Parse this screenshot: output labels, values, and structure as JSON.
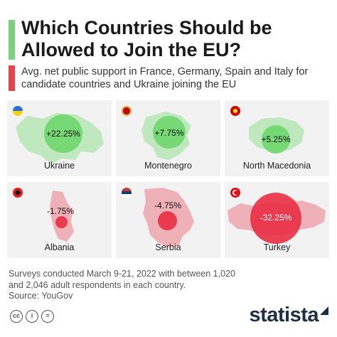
{
  "title": "Which Countries Should be Allowed to Join the EU?",
  "subtitle": "Avg. net public support in France, Germany, Spain and Italy for candidate countries and Ukraine joining the EU",
  "footnote_line1": "Surveys conducted March 9-21, 2022 with between 1,020",
  "footnote_line2": "and 2,046 adult respondents in each country.",
  "source": "Source: YouGov",
  "brand": "statista",
  "license_icons": [
    "cc-icon",
    "by-icon",
    "equals-icon"
  ],
  "colors": {
    "positive": "#6ed76e",
    "negative": "#e92e44",
    "land_pos": "#bfe8bf",
    "land_neg": "#efb1b8",
    "card": "#f2f2f2",
    "title_green": "#7ed081",
    "title_red": "#e8424f"
  },
  "chart_data": {
    "type": "bubble",
    "title": "Which Countries Should be Allowed to Join the EU?",
    "subtitle": "Avg. net public support in France, Germany, Spain and Italy for candidate countries and Ukraine joining the EU",
    "categories": [
      "Ukraine",
      "Montenegro",
      "North Macedonia",
      "Albania",
      "Serbia",
      "Turkey"
    ],
    "values": [
      22.25,
      7.75,
      5.25,
      -1.75,
      -4.75,
      -32.25
    ],
    "labels": [
      "+22.25%",
      "+7.75%",
      "+5.25%",
      "-1.75%",
      "-4.75%",
      "-32.25%"
    ],
    "unit": "%"
  }
}
